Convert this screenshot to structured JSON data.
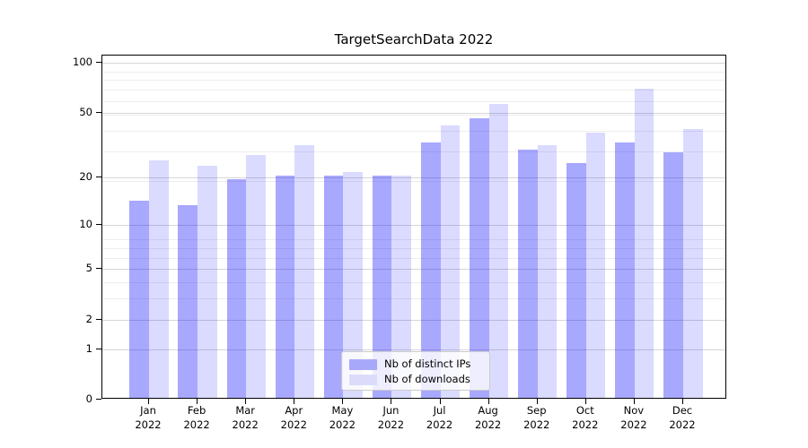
{
  "chart_data": {
    "type": "bar",
    "title": "TargetSearchData 2022",
    "categories": [
      "Jan",
      "Feb",
      "Mar",
      "Apr",
      "May",
      "Jun",
      "Jul",
      "Aug",
      "Sep",
      "Oct",
      "Nov",
      "Dec"
    ],
    "category_year_suffix": "2022",
    "series": [
      {
        "name": "Nb of distinct IPs",
        "values": [
          14,
          13,
          19,
          20,
          20,
          20,
          32,
          45,
          29,
          24,
          32,
          28
        ],
        "fill": "rgba(0,0,255,0.34)",
        "legend_color": "#a8a8fa"
      },
      {
        "name": "Nb of downloads",
        "values": [
          25,
          23,
          27,
          31,
          21,
          20,
          41,
          55,
          31,
          37,
          68,
          39
        ],
        "fill": "rgba(0,0,255,0.14)",
        "legend_color": "#dcdcfa"
      }
    ],
    "xlabel": "",
    "ylabel": "",
    "yscale": "log10(1+v)",
    "ylim": [
      0,
      111
    ],
    "y_major_ticks": [
      0,
      1,
      2,
      5,
      10,
      20,
      50,
      100
    ],
    "y_minor_ticks": [
      1,
      2,
      3,
      4,
      5,
      6,
      7,
      8,
      19,
      29,
      39,
      49,
      59,
      69,
      79,
      89
    ],
    "grid": "both",
    "legend_position": "lower center"
  },
  "colors": {
    "background": "#ffffff",
    "axis": "#000000",
    "major_grid": "#d6d6d6",
    "minor_grid": "#ededed",
    "legend_border": "#cccccc"
  }
}
